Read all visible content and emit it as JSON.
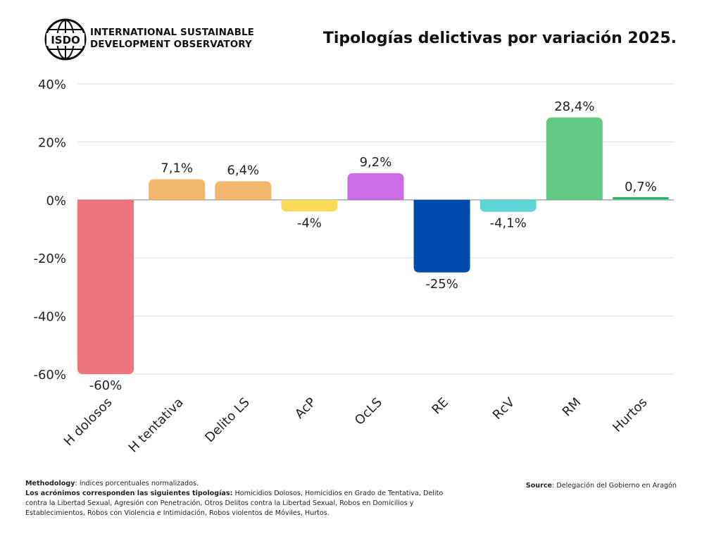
{
  "header": {
    "org_line1": "INTERNATIONAL SUSTAINABLE",
    "org_line2": "DEVELOPMENT OBSERVATORY",
    "logo_text": "ISDO",
    "title": "Tipologías delictivas por variación 2025."
  },
  "chart_data": {
    "type": "bar",
    "title": "Tipologías delictivas por variación 2025.",
    "xlabel": "",
    "ylabel": "",
    "ylim": [
      -60,
      40
    ],
    "yticks": [
      40,
      20,
      0,
      -20,
      -40,
      -60
    ],
    "ytick_labels": [
      "40%",
      "20%",
      "0%",
      "-20%",
      "-40%",
      "-60%"
    ],
    "grid": true,
    "legend": "none",
    "categories": [
      "H dolosos",
      "H tentativa",
      "Delito LS",
      "AcP",
      "OcLS",
      "RE",
      "RcV",
      "RM",
      "Hurtos"
    ],
    "values": [
      -60,
      7.1,
      6.4,
      -4,
      9.2,
      -25,
      -4.1,
      28.4,
      0.7
    ],
    "data_labels": [
      "-60%",
      "7,1%",
      "6,4%",
      "-4%",
      "9,2%",
      "-25%",
      "-4,1%",
      "28,4%",
      "0,7%"
    ],
    "colors": [
      "#ef737e",
      "#f2b76c",
      "#f2b76c",
      "#fdd95a",
      "#cb6be6",
      "#004aad",
      "#5dd5d5",
      "#63c984",
      "#18b35f"
    ]
  },
  "footer": {
    "methodology_label": "Methodology",
    "methodology_text": ": índices porcentuales normalizados.",
    "acronyms_label": "Los acrónimos corresponden las siguientes tipologías:",
    "acronyms_text": " Homicidios Dolosos, Homicidios en Grado de Tentativa, Delito contra la Libertad Sexual, Agresión con Penetración, Otros Delitos contra la Libertad Sexual, Robos en Domicilios y Establecimientos, Robos con Violencia e Intimidación, Robos violentos de Móviles, Hurtos.",
    "source_label": "Source",
    "source_text": ": Delegación del Gobierno en Aragón"
  }
}
